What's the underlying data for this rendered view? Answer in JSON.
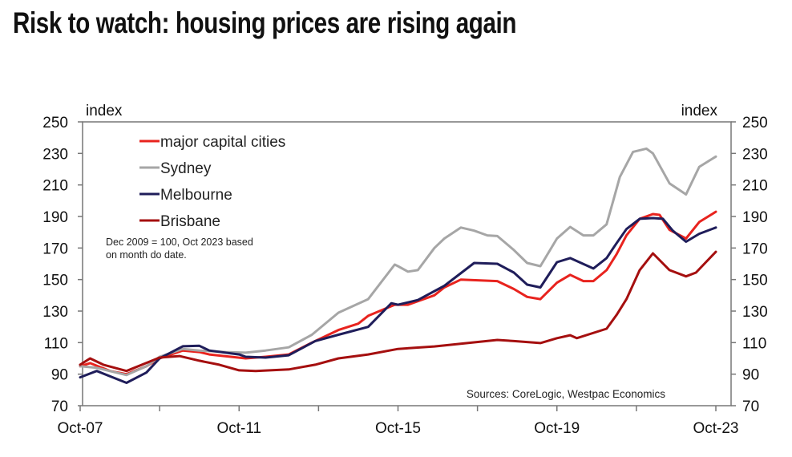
{
  "title": "Risk to watch: housing prices are rising again",
  "chart_data": {
    "type": "line",
    "title": "Risk to watch: housing prices are rising again",
    "ylabel_left": "index",
    "ylabel_right": "index",
    "ylim": [
      70,
      250
    ],
    "yticks": [
      70,
      90,
      110,
      130,
      150,
      170,
      190,
      210,
      230,
      250
    ],
    "xlim": [
      "2007-10",
      "2023-10"
    ],
    "xticks": [
      "Oct-07",
      "Oct-11",
      "Oct-15",
      "Oct-19",
      "Oct-23"
    ],
    "legend_position": "top-left",
    "grid": false,
    "note": [
      "Dec 2009 = 100, Oct 2023 based",
      "on month do date."
    ],
    "source": "Sources: CoreLogic, Westpac Economics",
    "series": [
      {
        "name": "major capital cities",
        "color": "#e8231e",
        "points": [
          [
            "2007-10",
            95
          ],
          [
            "2008-01",
            97
          ],
          [
            "2008-07",
            92
          ],
          [
            "2008-12",
            90
          ],
          [
            "2009-06",
            95
          ],
          [
            "2009-10",
            100
          ],
          [
            "2010-05",
            105
          ],
          [
            "2010-10",
            104
          ],
          [
            "2011-01",
            102.5
          ],
          [
            "2011-12",
            100
          ],
          [
            "2012-06",
            101
          ],
          [
            "2013-01",
            102.5
          ],
          [
            "2013-08",
            110
          ],
          [
            "2014-04",
            118
          ],
          [
            "2014-10",
            122
          ],
          [
            "2015-01",
            127
          ],
          [
            "2015-09",
            134
          ],
          [
            "2016-01",
            134
          ],
          [
            "2016-09",
            140
          ],
          [
            "2016-12",
            145
          ],
          [
            "2017-05",
            150
          ],
          [
            "2018-04",
            149
          ],
          [
            "2018-09",
            144
          ],
          [
            "2019-01",
            139
          ],
          [
            "2019-05",
            137.6
          ],
          [
            "2019-10",
            148
          ],
          [
            "2020-02",
            153
          ],
          [
            "2020-06",
            149
          ],
          [
            "2020-09",
            149
          ],
          [
            "2021-01",
            156
          ],
          [
            "2021-04",
            166
          ],
          [
            "2021-07",
            178
          ],
          [
            "2021-11",
            188.5
          ],
          [
            "2022-03",
            191.5
          ],
          [
            "2022-05",
            191
          ],
          [
            "2022-08",
            181.5
          ],
          [
            "2023-01",
            176
          ],
          [
            "2023-05",
            186.5
          ],
          [
            "2023-10",
            193
          ]
        ]
      },
      {
        "name": "Sydney",
        "color": "#a6a6a6",
        "points": [
          [
            "2007-10",
            95
          ],
          [
            "2008-03",
            94
          ],
          [
            "2008-12",
            89.4
          ],
          [
            "2009-06",
            95
          ],
          [
            "2009-10",
            101
          ],
          [
            "2010-05",
            106
          ],
          [
            "2010-10",
            105
          ],
          [
            "2011-06",
            104
          ],
          [
            "2011-12",
            103.6
          ],
          [
            "2012-06",
            105
          ],
          [
            "2013-01",
            107
          ],
          [
            "2013-08",
            115
          ],
          [
            "2014-04",
            129
          ],
          [
            "2015-01",
            137.6
          ],
          [
            "2015-09",
            159.5
          ],
          [
            "2015-10",
            158.5
          ],
          [
            "2016-01",
            155
          ],
          [
            "2016-04",
            156
          ],
          [
            "2016-09",
            170
          ],
          [
            "2016-12",
            176
          ],
          [
            "2017-05",
            183
          ],
          [
            "2017-09",
            181
          ],
          [
            "2018-01",
            178
          ],
          [
            "2018-04",
            177.6
          ],
          [
            "2018-09",
            168.7
          ],
          [
            "2019-01",
            160.5
          ],
          [
            "2019-05",
            158.5
          ],
          [
            "2019-10",
            176
          ],
          [
            "2020-02",
            183.4
          ],
          [
            "2020-06",
            178
          ],
          [
            "2020-09",
            178
          ],
          [
            "2021-01",
            185
          ],
          [
            "2021-03",
            200
          ],
          [
            "2021-05",
            215
          ],
          [
            "2021-09",
            231
          ],
          [
            "2022-01",
            233
          ],
          [
            "2022-03",
            230
          ],
          [
            "2022-08",
            211
          ],
          [
            "2023-01",
            204
          ],
          [
            "2023-05",
            221.5
          ],
          [
            "2023-10",
            228
          ]
        ]
      },
      {
        "name": "Melbourne",
        "color": "#1f1d5a",
        "points": [
          [
            "2007-10",
            88
          ],
          [
            "2008-03",
            92
          ],
          [
            "2008-12",
            84.5
          ],
          [
            "2009-06",
            91
          ],
          [
            "2009-10",
            100
          ],
          [
            "2010-05",
            107.7
          ],
          [
            "2010-10",
            108
          ],
          [
            "2011-01",
            105
          ],
          [
            "2011-10",
            102.5
          ],
          [
            "2011-12",
            101
          ],
          [
            "2012-06",
            100.5
          ],
          [
            "2013-01",
            102
          ],
          [
            "2013-09",
            111
          ],
          [
            "2014-04",
            115
          ],
          [
            "2015-01",
            120
          ],
          [
            "2015-08",
            135
          ],
          [
            "2015-10",
            134
          ],
          [
            "2016-04",
            137
          ],
          [
            "2016-12",
            146
          ],
          [
            "2017-09",
            160.5
          ],
          [
            "2018-04",
            160
          ],
          [
            "2018-09",
            154.4
          ],
          [
            "2019-01",
            146.8
          ],
          [
            "2019-05",
            145
          ],
          [
            "2019-10",
            161
          ],
          [
            "2020-02",
            163.6
          ],
          [
            "2020-09",
            157
          ],
          [
            "2021-01",
            163.6
          ],
          [
            "2021-04",
            173
          ],
          [
            "2021-07",
            182
          ],
          [
            "2021-11",
            188.5
          ],
          [
            "2022-03",
            189
          ],
          [
            "2022-06",
            188.5
          ],
          [
            "2022-09",
            181
          ],
          [
            "2023-01",
            174
          ],
          [
            "2023-05",
            179
          ],
          [
            "2023-10",
            183
          ]
        ]
      },
      {
        "name": "Brisbane",
        "color": "#a50f0f",
        "points": [
          [
            "2007-10",
            96
          ],
          [
            "2008-01",
            100
          ],
          [
            "2008-05",
            96
          ],
          [
            "2008-12",
            92
          ],
          [
            "2009-10",
            100.5
          ],
          [
            "2010-04",
            101.5
          ],
          [
            "2010-10",
            98.5
          ],
          [
            "2011-04",
            96
          ],
          [
            "2011-10",
            92.4
          ],
          [
            "2012-03",
            92
          ],
          [
            "2013-01",
            93
          ],
          [
            "2013-09",
            96
          ],
          [
            "2014-04",
            100
          ],
          [
            "2015-01",
            102.5
          ],
          [
            "2015-10",
            106
          ],
          [
            "2016-09",
            107.6
          ],
          [
            "2018-04",
            111.7
          ],
          [
            "2018-09",
            111
          ],
          [
            "2019-05",
            109.7
          ],
          [
            "2019-10",
            112.8
          ],
          [
            "2020-02",
            114.7
          ],
          [
            "2020-04",
            112.8
          ],
          [
            "2021-01",
            118.8
          ],
          [
            "2021-04",
            127.5
          ],
          [
            "2021-07",
            137.6
          ],
          [
            "2021-11",
            156
          ],
          [
            "2022-03",
            166.6
          ],
          [
            "2022-08",
            156
          ],
          [
            "2023-01",
            152
          ],
          [
            "2023-04",
            154.4
          ],
          [
            "2023-07",
            161
          ],
          [
            "2023-10",
            167.6
          ]
        ]
      }
    ]
  }
}
